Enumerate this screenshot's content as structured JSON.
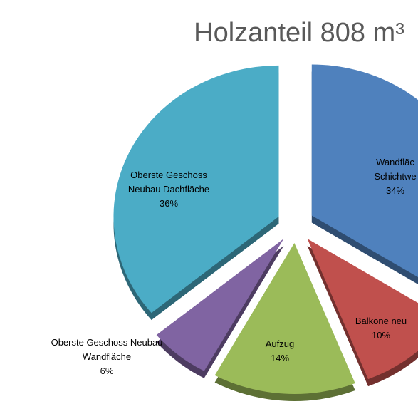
{
  "chart_data": {
    "type": "pie",
    "title": "Holzanteil 808 m³",
    "categories": [
      [
        "Wandfläc",
        "Schichtwe"
      ],
      [
        "Balkone neu"
      ],
      [
        "Aufzug"
      ],
      [
        "Oberste Geschoss Neubau",
        "Wandfläche"
      ],
      [
        "Oberste Geschoss",
        "Neubau Dachfläche"
      ]
    ],
    "values": [
      34,
      10,
      14,
      6,
      36
    ],
    "value_labels": [
      "34%",
      "10%",
      "14%",
      "6%",
      "36%"
    ],
    "colors": [
      "#4f81bd",
      "#c0504d",
      "#9bbb59",
      "#8064a2",
      "#4bacc6"
    ]
  }
}
